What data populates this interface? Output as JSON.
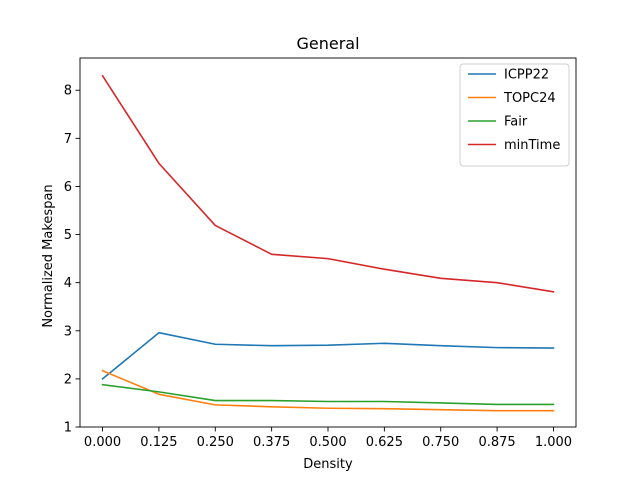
{
  "chart_data": {
    "type": "line",
    "title": "General",
    "xlabel": "Density",
    "ylabel": "Normalized Makespan",
    "x": [
      0.0,
      0.125,
      0.25,
      0.375,
      0.5,
      0.625,
      0.75,
      0.875,
      1.0
    ],
    "x_tick_labels": [
      "0.000",
      "0.125",
      "0.250",
      "0.375",
      "0.500",
      "0.625",
      "0.750",
      "0.875",
      "1.000"
    ],
    "y_ticks": [
      1,
      2,
      3,
      4,
      5,
      6,
      7,
      8
    ],
    "y_tick_labels": [
      "1",
      "2",
      "3",
      "4",
      "5",
      "6",
      "7",
      "8"
    ],
    "xlim": [
      -0.05,
      1.05
    ],
    "ylim": [
      1.0,
      8.67
    ],
    "grid": false,
    "legend_position": "top-right",
    "series": [
      {
        "name": "ICPP22",
        "color": "#1f77b4",
        "values": [
          2.0,
          2.96,
          2.72,
          2.69,
          2.7,
          2.74,
          2.69,
          2.65,
          2.64
        ]
      },
      {
        "name": "TOPC24",
        "color": "#ff7f0e",
        "values": [
          2.17,
          1.68,
          1.46,
          1.42,
          1.39,
          1.38,
          1.36,
          1.34,
          1.34
        ]
      },
      {
        "name": "Fair",
        "color": "#2ca02c",
        "values": [
          1.88,
          1.73,
          1.55,
          1.55,
          1.53,
          1.53,
          1.5,
          1.47,
          1.47
        ]
      },
      {
        "name": "minTime",
        "color": "#d62728",
        "values": [
          8.3,
          6.48,
          5.19,
          4.59,
          4.5,
          4.28,
          4.09,
          4.0,
          3.81
        ]
      }
    ]
  }
}
